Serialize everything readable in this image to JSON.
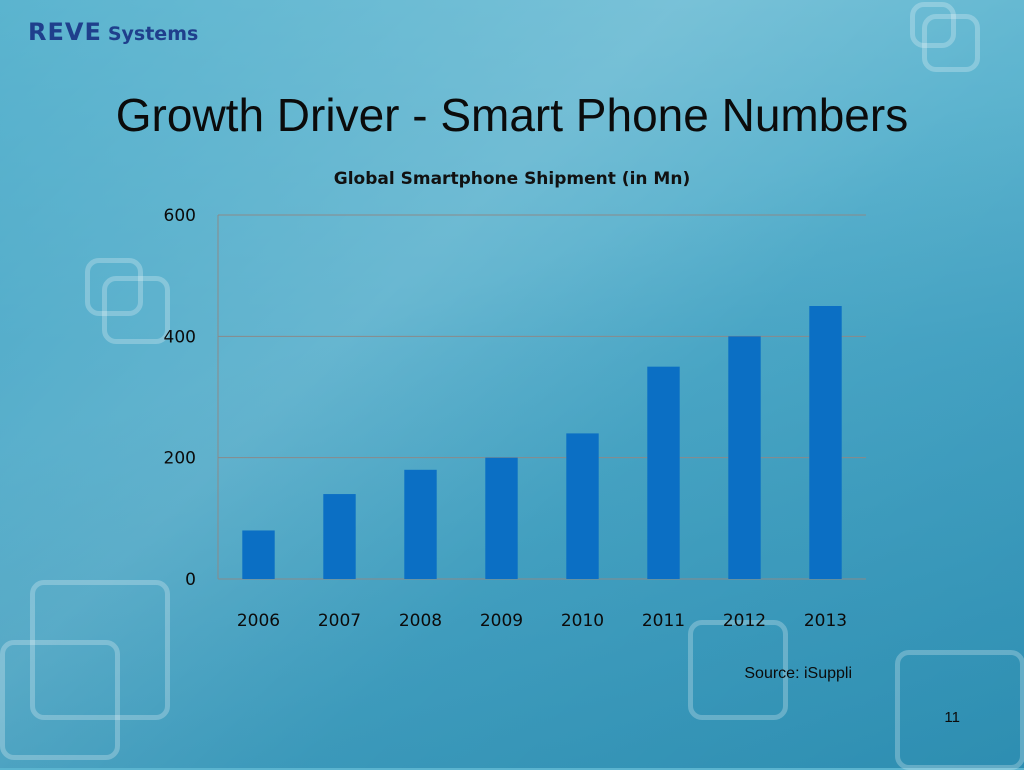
{
  "logo": {
    "brand": "REVE",
    "suffix": "Systems"
  },
  "slide": {
    "title": "Growth Driver - Smart Phone Numbers",
    "source": "Source: iSuppli",
    "page_number": "11"
  },
  "colors": {
    "bar": "#0b6fc4",
    "logo": "#1f3f8c",
    "background": "#45a6c6"
  },
  "chart_data": {
    "type": "bar",
    "title": "Global Smartphone Shipment (in Mn)",
    "categories": [
      "2006",
      "2007",
      "2008",
      "2009",
      "2010",
      "2011",
      "2012",
      "2013"
    ],
    "values": [
      80,
      140,
      180,
      200,
      240,
      350,
      400,
      450
    ],
    "xlabel": "",
    "ylabel": "",
    "ylim": [
      0,
      600
    ],
    "yticks": [
      "0",
      "200",
      "400",
      "600"
    ],
    "grid": true,
    "legend": "none"
  }
}
